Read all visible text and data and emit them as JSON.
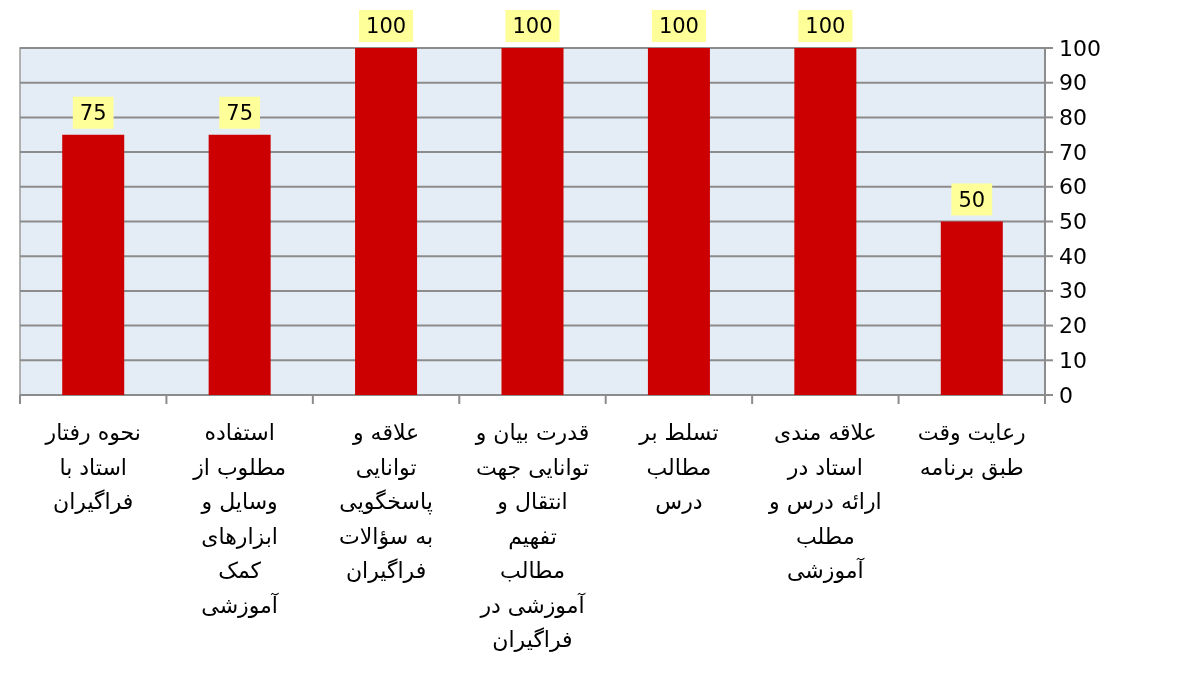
{
  "chart_data": {
    "type": "bar",
    "categories": [
      "نحوه رفتار استاد با فراگیران",
      "استفاده مطلوب از وسایل و ابزارهای کمک آموزشی",
      "علاقه و توانایی پاسخگویی به سؤالات فراگیران",
      "قدرت بیان و توانایی جهت انتقال و تفهیم مطالب آموزشی در فراگیران",
      "تسلط بر مطالب درس",
      "علاقه مندی استاد در ارائه درس و مطلب آموزشی",
      "رعایت وقت طبق برنامه"
    ],
    "values": [
      75,
      75,
      100,
      100,
      100,
      100,
      50
    ],
    "color": "#cc0000",
    "ylim": [
      0,
      100
    ],
    "yticks": [
      0,
      10,
      20,
      30,
      40,
      50,
      60,
      70,
      80,
      90,
      100
    ],
    "grid": "y",
    "data_labels": true
  }
}
